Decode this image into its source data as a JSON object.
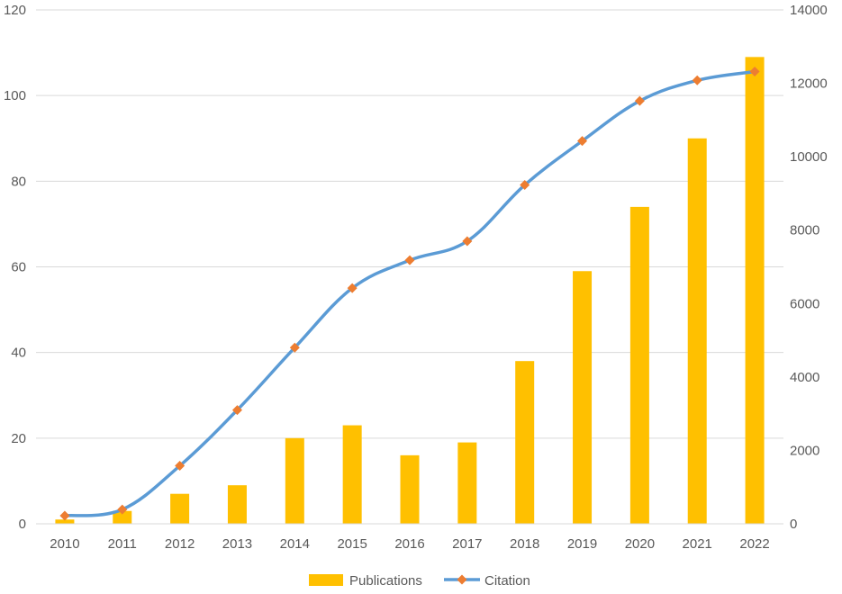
{
  "chart_data": {
    "type": "bar+line",
    "categories": [
      "2010",
      "2011",
      "2012",
      "2013",
      "2014",
      "2015",
      "2016",
      "2017",
      "2018",
      "2019",
      "2020",
      "2021",
      "2022"
    ],
    "series": [
      {
        "name": "Publications",
        "type": "bar",
        "axis": "left",
        "color": "#FFC000",
        "values": [
          1,
          3,
          7,
          9,
          20,
          23,
          16,
          19,
          38,
          59,
          74,
          90,
          109
        ]
      },
      {
        "name": "Citation",
        "type": "line",
        "axis": "right",
        "color": "#5B9BD5",
        "marker_color": "#ED7D31",
        "values": [
          220,
          390,
          1580,
          3100,
          4800,
          6420,
          7180,
          7700,
          9230,
          10430,
          11520,
          12080,
          12320
        ]
      }
    ],
    "left_axis": {
      "min": 0,
      "max": 120,
      "ticks": [
        "0",
        "20",
        "40",
        "60",
        "80",
        "100",
        "120"
      ]
    },
    "right_axis": {
      "min": 0,
      "max": 14000,
      "ticks": [
        "0",
        "2000",
        "4000",
        "6000",
        "8000",
        "10000",
        "12000",
        "14000"
      ]
    },
    "grid": true,
    "legend_position": "bottom"
  }
}
